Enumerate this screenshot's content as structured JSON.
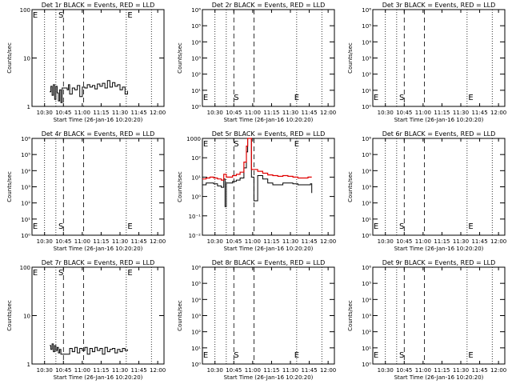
{
  "figure": {
    "x_ticks": [
      "10:30",
      "10:45",
      "11:00",
      "11:15",
      "11:30",
      "11:45",
      "12:00"
    ],
    "xlabel": "Start Time (26-Jan-16 10:20:20)",
    "ylabel": "Counts/sec",
    "marker_S": "S",
    "marker_E": "E",
    "colors": {
      "events": "#000000",
      "lld": "#e00000",
      "axis": "#000000"
    }
  },
  "chart_data": [
    {
      "type": "line",
      "title": "Det 1r BLACK = Events, RED = LLD",
      "yscale": "log",
      "ylim": [
        1,
        100
      ],
      "y_ticks": [
        "1",
        "10",
        "100"
      ],
      "markers": {
        "E_left": "10:20",
        "S": "10:43",
        "E_right": "11:38"
      },
      "series": [
        {
          "name": "Events",
          "x": [
            "10:34",
            "10:35",
            "10:36",
            "10:37",
            "10:38",
            "10:39",
            "10:40",
            "10:41",
            "10:42",
            "10:43",
            "10:44",
            "10:48",
            "10:49",
            "10:50",
            "10:52",
            "10:54",
            "10:56",
            "10:58",
            "11:00",
            "11:02",
            "11:04",
            "11:06",
            "11:08",
            "11:10",
            "11:12",
            "11:14",
            "11:16",
            "11:18",
            "11:20",
            "11:22",
            "11:24",
            "11:26",
            "11:28",
            "11:30",
            "11:32",
            "11:34",
            "11:36"
          ],
          "y": [
            2,
            2.6,
            1.7,
            2.8,
            1.4,
            2.6,
            1.9,
            1.3,
            2.2,
            1.2,
            2.4,
            2.2,
            2.8,
            1.8,
            2.4,
            2.2,
            2.7,
            1.6,
            2.5,
            2.4,
            2.8,
            2.5,
            2.7,
            2.3,
            2.9,
            2.6,
            3,
            2.4,
            3.4,
            2.5,
            3.1,
            2.6,
            2.8,
            2.2,
            2.5,
            1.8,
            2.1
          ]
        }
      ]
    },
    {
      "type": "line",
      "title": "Det 2r BLACK = Events, RED = LLD",
      "yscale": "log",
      "ylim": [
        1,
        1000000
      ],
      "y_ticks": [
        "10⁰",
        "10¹",
        "10²",
        "10³",
        "10⁴",
        "10⁵",
        "10⁶"
      ],
      "markers": {
        "E_left": "10:20",
        "S": "10:47",
        "E_right": "11:35"
      },
      "series": []
    },
    {
      "type": "line",
      "title": "Det 3r BLACK = Events, RED = LLD",
      "yscale": "log",
      "ylim": [
        1,
        1000000
      ],
      "y_ticks": [
        "10⁰",
        "10¹",
        "10²",
        "10³",
        "10⁴",
        "10⁵",
        "10⁶"
      ],
      "markers": {
        "E_left": "10:20",
        "S": "10:43",
        "E_right": "11:38"
      },
      "series": []
    },
    {
      "type": "line",
      "title": "Det 4r BLACK = Events, RED = LLD",
      "yscale": "log",
      "ylim": [
        1,
        1000000
      ],
      "y_ticks": [
        "10⁰",
        "10¹",
        "10²",
        "10³",
        "10⁴",
        "10⁵",
        "10⁶"
      ],
      "markers": {
        "E_left": "10:20",
        "S": "10:43",
        "E_right": "11:38"
      },
      "series": []
    },
    {
      "type": "line",
      "title": "Det 5r BLACK = Events, RED = LLD",
      "yscale": "log",
      "ylim": [
        0.01,
        1000
      ],
      "y_ticks": [
        "10⁻²",
        "10⁻¹",
        "10⁰",
        "10¹",
        "10²",
        "1000"
      ],
      "markers": {
        "E_left": "10:20",
        "S": "10:47",
        "E_right": "11:35"
      },
      "series": [
        {
          "name": "Events",
          "x": [
            "10:20",
            "10:23",
            "10:26",
            "10:29",
            "10:32",
            "10:35",
            "10:37",
            "10:38",
            "10:39",
            "10:41",
            "10:44",
            "10:47",
            "10:50",
            "10:53",
            "10:55",
            "10:56",
            "10:57",
            "10:59",
            "11:01",
            "11:04",
            "11:08",
            "11:12",
            "11:16",
            "11:20",
            "11:24",
            "11:28",
            "11:32",
            "11:36",
            "11:40",
            "11:44",
            "11:46",
            "11:47"
          ],
          "y": [
            4,
            5,
            5,
            4.5,
            3.5,
            3,
            8,
            0.3,
            5,
            5,
            6,
            7,
            9,
            30,
            200,
            4000,
            1000,
            10,
            0.6,
            12,
            8,
            5,
            4,
            4,
            5,
            5,
            4.5,
            4,
            4,
            4,
            4.5,
            1.5
          ]
        },
        {
          "name": "LLD",
          "x": [
            "10:20",
            "10:23",
            "10:26",
            "10:29",
            "10:32",
            "10:35",
            "10:37",
            "10:39",
            "10:41",
            "10:44",
            "10:47",
            "10:50",
            "10:53",
            "10:55",
            "10:56",
            "10:57",
            "10:59",
            "11:01",
            "11:04",
            "11:08",
            "11:12",
            "11:16",
            "11:20",
            "11:24",
            "11:28",
            "11:32",
            "11:36",
            "11:40",
            "11:44",
            "11:47"
          ],
          "y": [
            8,
            9,
            10,
            9,
            8,
            7,
            14,
            10,
            10,
            12,
            14,
            18,
            60,
            400,
            6000,
            2000,
            25,
            25,
            20,
            16,
            13,
            12,
            11,
            12,
            11,
            10,
            9,
            9,
            10,
            10
          ]
        }
      ]
    },
    {
      "type": "line",
      "title": "Det 6r BLACK = Events, RED = LLD",
      "yscale": "log",
      "ylim": [
        1,
        1000000
      ],
      "y_ticks": [
        "10⁰",
        "10¹",
        "10²",
        "10³",
        "10⁴",
        "10⁵",
        "10⁶"
      ],
      "markers": {
        "E_left": "10:20",
        "S": "10:43",
        "E_right": "11:38"
      },
      "series": []
    },
    {
      "type": "line",
      "title": "Det 7r BLACK = Events, RED = LLD",
      "yscale": "log",
      "ylim": [
        1,
        100
      ],
      "y_ticks": [
        "1",
        "10",
        "100"
      ],
      "markers": {
        "E_left": "10:20",
        "S": "10:43",
        "E_right": "11:38"
      },
      "series": [
        {
          "name": "Events",
          "x": [
            "10:34",
            "10:35",
            "10:36",
            "10:37",
            "10:38",
            "10:39",
            "10:40",
            "10:41",
            "10:42",
            "10:43",
            "10:50",
            "10:52",
            "10:54",
            "10:56",
            "10:58",
            "11:00",
            "11:02",
            "11:04",
            "11:06",
            "11:08",
            "11:10",
            "11:12",
            "11:14",
            "11:16",
            "11:18",
            "11:20",
            "11:22",
            "11:24",
            "11:26",
            "11:28",
            "11:30",
            "11:32",
            "11:34",
            "11:36"
          ],
          "y": [
            2.4,
            2,
            2.6,
            1.8,
            2.4,
            1.9,
            2.2,
            1.7,
            2,
            1.6,
            2.1,
            1.8,
            2.2,
            1.7,
            2.1,
            1.9,
            2.2,
            1.6,
            2.1,
            1.8,
            2.2,
            1.9,
            2.1,
            1.6,
            2.2,
            1.8,
            2,
            2.1,
            1.7,
            2,
            1.8,
            2.1,
            1.9,
            2
          ]
        }
      ]
    },
    {
      "type": "line",
      "title": "Det 8r BLACK = Events, RED = LLD",
      "yscale": "log",
      "ylim": [
        1,
        1000000
      ],
      "y_ticks": [
        "10⁰",
        "10¹",
        "10²",
        "10³",
        "10⁴",
        "10⁵",
        "10⁶"
      ],
      "markers": {
        "E_left": "10:20",
        "S": "10:47",
        "E_right": "11:35"
      },
      "series": []
    },
    {
      "type": "line",
      "title": "Det 9r BLACK = Events, RED = LLD",
      "yscale": "log",
      "ylim": [
        1,
        1000000
      ],
      "y_ticks": [
        "10⁰",
        "10¹",
        "10²",
        "10³",
        "10⁴",
        "10⁵",
        "10⁶"
      ],
      "markers": {
        "E_left": "10:20",
        "S": "10:43",
        "E_right": "11:38"
      },
      "series": []
    }
  ]
}
